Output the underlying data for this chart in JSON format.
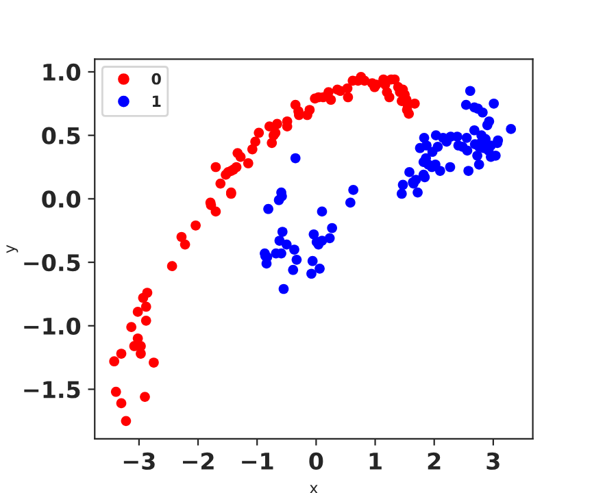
{
  "chart_data": {
    "type": "scatter",
    "xlabel": "x",
    "ylabel": "y",
    "legend": "top left",
    "marker": "circle",
    "grid": false,
    "xlim": [
      -3.75,
      3.67
    ],
    "ylim": [
      -1.89,
      1.1
    ],
    "xticks": [
      -3,
      -2,
      -1,
      0,
      1,
      2,
      3
    ],
    "yticks": [
      {
        "value": -1.5,
        "label": "−1.5"
      },
      {
        "value": -1,
        "label": "−1.0"
      },
      {
        "value": -0.5,
        "label": "−0.5"
      },
      {
        "value": 0,
        "label": "0.0"
      },
      {
        "value": 0.5,
        "label": "0.5"
      },
      {
        "value": 1,
        "label": "1.0"
      }
    ],
    "series": [
      {
        "name": "0",
        "color": "#ff0000",
        "x": [
          -0.35,
          -0.3,
          -0.29,
          -0.15,
          -0.11,
          -0.02,
          -0.49,
          -0.49,
          -0.66,
          -0.79,
          -0.69,
          -0.72,
          -0.75,
          -0.97,
          -1.03,
          -1.08,
          -1.33,
          -1.28,
          -1.15,
          -1.7,
          -1.53,
          -1.44,
          -1.4,
          -1.35,
          -1.49,
          -1.62,
          -1.44,
          -1.44,
          -1.79,
          -1.78,
          -1.7,
          -2.04,
          -2.28,
          -2.22,
          -2.44,
          -2.86,
          -2.93,
          -2.88,
          -3.02,
          -2.88,
          -3.13,
          -3.02,
          -3.08,
          -2.97,
          -2.97,
          -3.3,
          -3.42,
          -2.75,
          -3.39,
          -3.3,
          -2.9,
          -3.22,
          0.04,
          0.12,
          0.21,
          0.25,
          0.36,
          0.41,
          0.53,
          0.54,
          0.62,
          0.71,
          0.76,
          0.82,
          0.95,
          0.99,
          1.02,
          1.14,
          1.17,
          1.2,
          1.24,
          1.27,
          1.33,
          1.39,
          1.42,
          1.47,
          1.5,
          1.53,
          1.45,
          1.55,
          1.67,
          1.54,
          1.57
        ],
        "values": [
          0.74,
          0.69,
          0.66,
          0.66,
          0.7,
          0.79,
          0.61,
          0.57,
          0.59,
          0.57,
          0.52,
          0.5,
          0.44,
          0.52,
          0.45,
          0.39,
          0.36,
          0.33,
          0.28,
          0.25,
          0.19,
          0.22,
          0.23,
          0.25,
          0.21,
          0.12,
          0.05,
          0.04,
          -0.03,
          -0.05,
          -0.1,
          -0.21,
          -0.3,
          -0.36,
          -0.53,
          -0.74,
          -0.78,
          -0.85,
          -0.89,
          -0.96,
          -1.01,
          -1.1,
          -1.16,
          -1.16,
          -1.22,
          -1.22,
          -1.28,
          -1.29,
          -1.52,
          -1.61,
          -1.56,
          -1.75,
          0.8,
          0.8,
          0.84,
          0.78,
          0.86,
          0.85,
          0.87,
          0.8,
          0.93,
          0.93,
          0.96,
          0.93,
          0.91,
          0.88,
          0.9,
          0.94,
          0.9,
          0.84,
          0.8,
          0.94,
          0.94,
          0.88,
          0.84,
          0.86,
          0.82,
          0.78,
          0.77,
          0.74,
          0.75,
          0.7,
          0.67
        ]
      },
      {
        "name": "1",
        "color": "#0000ff",
        "x": [
          -0.35,
          -0.59,
          -0.58,
          -0.63,
          -0.81,
          0.1,
          0.63,
          0.58,
          -0.57,
          -0.62,
          -0.5,
          -0.37,
          -0.87,
          -0.86,
          -0.83,
          -0.68,
          -0.59,
          -0.33,
          -0.84,
          -0.39,
          -0.55,
          -0.04,
          0.01,
          0.1,
          0.04,
          0.27,
          0.23,
          -0.06,
          0.06,
          -0.08,
          1.45,
          1.47,
          1.65,
          1.72,
          2.61,
          3.01,
          2.54,
          2.68,
          2.74,
          2.82,
          2.93,
          2.9,
          2.68,
          3.3,
          2.03,
          1.83,
          2.15,
          2.28,
          2.39,
          2.55,
          2.21,
          2.8,
          2.87,
          2.79,
          3.08,
          3.07,
          2.41,
          2.48,
          2.56,
          2.69,
          2.76,
          2.84,
          2.96,
          2.92,
          2.96,
          3.04,
          2.73,
          1.87,
          2.06,
          1.76,
          1.97,
          1.86,
          1.82,
          1.9,
          1.96,
          2.02,
          2.1,
          2.27,
          2.58,
          2.76,
          1.58,
          1.69,
          1.64,
          1.82,
          1.84
        ],
        "values": [
          0.32,
          0.05,
          0.02,
          -0.01,
          -0.08,
          -0.1,
          0.07,
          -0.03,
          -0.26,
          -0.33,
          -0.36,
          -0.4,
          -0.43,
          -0.45,
          -0.46,
          -0.43,
          -0.43,
          -0.48,
          -0.51,
          -0.56,
          -0.71,
          -0.28,
          -0.34,
          -0.33,
          -0.36,
          -0.23,
          -0.31,
          -0.49,
          -0.55,
          -0.59,
          0.04,
          0.11,
          0.12,
          0.05,
          0.85,
          0.75,
          0.74,
          0.72,
          0.71,
          0.68,
          0.61,
          0.58,
          0.54,
          0.55,
          0.5,
          0.48,
          0.48,
          0.49,
          0.49,
          0.48,
          0.45,
          0.5,
          0.47,
          0.44,
          0.46,
          0.44,
          0.42,
          0.41,
          0.38,
          0.43,
          0.41,
          0.4,
          0.42,
          0.38,
          0.33,
          0.34,
          0.34,
          0.42,
          0.41,
          0.4,
          0.37,
          0.32,
          0.29,
          0.27,
          0.25,
          0.27,
          0.22,
          0.25,
          0.22,
          0.27,
          0.21,
          0.15,
          0.13,
          0.19,
          0.17
        ]
      }
    ]
  }
}
